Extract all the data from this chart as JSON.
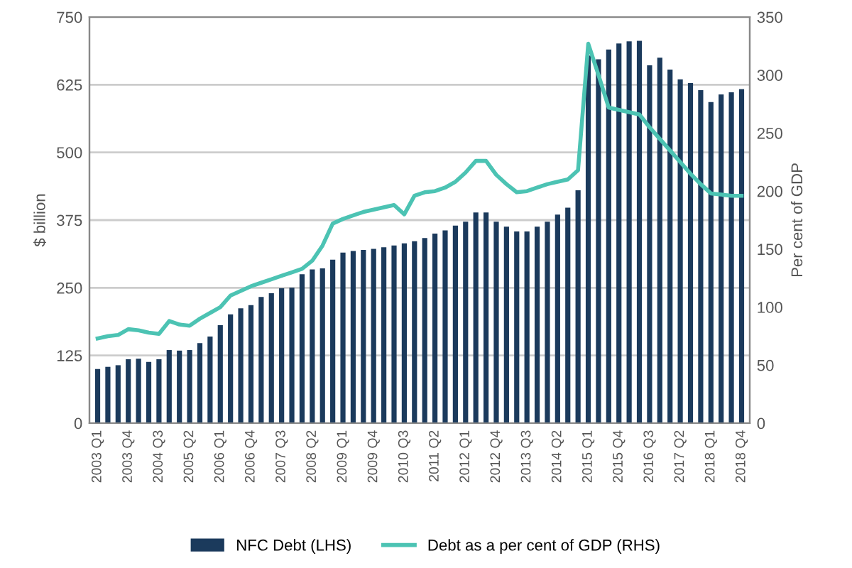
{
  "chart_data": {
    "type": "bar",
    "ylabel": "$ billion",
    "y2label": "Per cent of GDP",
    "categories": [
      "2003 Q1",
      null,
      null,
      "2003 Q4",
      null,
      null,
      "2004 Q3",
      null,
      null,
      "2005 Q2",
      null,
      null,
      "2006 Q1",
      null,
      null,
      "2006 Q4",
      null,
      null,
      "2007 Q3",
      null,
      null,
      "2008 Q2",
      null,
      null,
      "2009 Q1",
      null,
      null,
      "2009 Q4",
      null,
      null,
      "2010 Q3",
      null,
      null,
      "2011 Q2",
      null,
      null,
      "2012 Q1",
      null,
      null,
      "2012 Q4",
      null,
      null,
      "2013 Q3",
      null,
      null,
      "2014 Q2",
      null,
      null,
      "2015 Q1",
      null,
      null,
      "2015 Q4",
      null,
      null,
      "2016 Q3",
      null,
      null,
      "2017 Q2",
      null,
      null,
      "2018 Q1",
      null,
      null,
      "2018 Q4"
    ],
    "series": [
      {
        "name": "NFC Debt (LHS)",
        "color": "#1b3a5c",
        "values": [
          100,
          104,
          107,
          118,
          119,
          113,
          118,
          135,
          134,
          135,
          148,
          160,
          181,
          201,
          212,
          218,
          233,
          240,
          249,
          250,
          275,
          284,
          286,
          302,
          315,
          318,
          320,
          322,
          325,
          328,
          332,
          336,
          342,
          350,
          356,
          365,
          372,
          389,
          389,
          372,
          363,
          354,
          354,
          363,
          372,
          385,
          398,
          430,
          679,
          672,
          690,
          701,
          705,
          706,
          661,
          675,
          653,
          635,
          628,
          615,
          593,
          607,
          611,
          617
        ]
      },
      {
        "name": "Debt as a per cent of GDP (RHS)",
        "type": "line",
        "axis": "y2",
        "color": "#4cc3b3",
        "values": [
          73,
          75,
          76,
          81,
          80,
          78,
          77,
          88,
          85,
          84,
          90,
          95,
          100,
          110,
          114,
          118,
          121,
          124,
          127,
          130,
          133,
          140,
          153,
          172,
          176,
          179,
          182,
          184,
          186,
          188,
          180,
          196,
          199,
          200,
          203,
          208,
          216,
          226,
          226,
          214,
          206,
          199,
          200,
          203,
          206,
          208,
          210,
          218,
          327,
          300,
          272,
          270,
          268,
          266,
          255,
          245,
          235,
          225,
          215,
          206,
          198,
          197,
          196,
          196
        ]
      }
    ],
    "ylim": [
      0,
      750
    ],
    "yticks": [
      0,
      125,
      250,
      375,
      500,
      625,
      750
    ],
    "y2lim": [
      0,
      350
    ],
    "y2ticks": [
      0,
      50,
      100,
      150,
      200,
      250,
      300,
      350
    ],
    "grid": "y",
    "legend": "bottom",
    "marker": "none",
    "line_style": "solid"
  }
}
